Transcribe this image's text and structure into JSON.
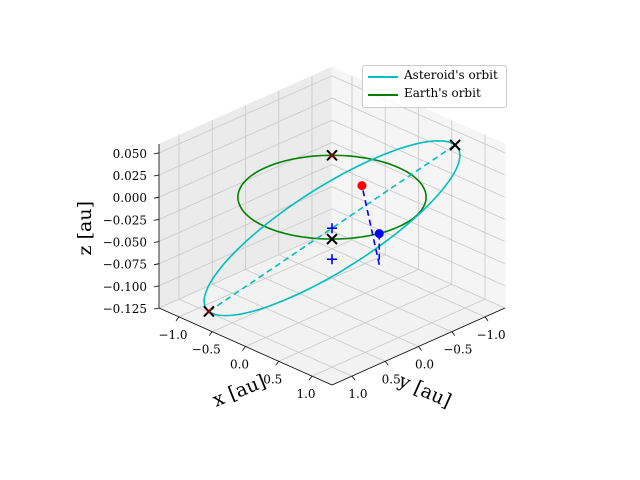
{
  "chart_data": {
    "type": "line",
    "projection": "3d",
    "xlabel": "x [au]",
    "ylabel": "y [au]",
    "zlabel": "z [au]",
    "xlim": [
      -1.3,
      1.3
    ],
    "ylim": [
      -1.3,
      1.3
    ],
    "zlim": [
      -0.125,
      0.06
    ],
    "x_ticks": [
      "−1.0",
      "−0.5",
      "0.0",
      "0.5",
      "1.0"
    ],
    "y_ticks": [
      "−1.0",
      "−0.5",
      "0.0",
      "0.5",
      "1.0"
    ],
    "z_ticks": [
      "−0.125",
      "−0.100",
      "−0.075",
      "−0.050",
      "−0.025",
      "0.000",
      "0.025",
      "0.050"
    ],
    "grid": true,
    "legend_position": "top-right",
    "colors": {
      "asteroid_orbit": "#00bfbf",
      "earth_orbit": "#008000",
      "blue_marker": "#0000ff",
      "red_marker": "#ff0000",
      "x_marker": "#000000",
      "x_marker_inner": "#8b0000"
    },
    "series": [
      {
        "name": "Asteroid's orbit",
        "kind": "ellipse",
        "center": [
          0.0,
          0.0,
          -0.035
        ],
        "axis_u": [
          0.8,
          -1.05,
          0.0855
        ],
        "axis_v": [
          1.02,
          0.5,
          0.0205
        ]
      },
      {
        "name": "Earth's orbit",
        "kind": "circle",
        "center": [
          0.0,
          0.0,
          0.0
        ],
        "radius": 1.0
      }
    ],
    "lines": [
      {
        "style": "dashed",
        "color": "asteroid_orbit",
        "from": [
          -0.8,
          1.05,
          -0.1205
        ],
        "to": [
          0.8,
          -1.05,
          0.0505
        ]
      },
      {
        "style": "dashed",
        "color": "blue_marker",
        "from": [
          0.97,
          0.26,
          0.0
        ],
        "to": [
          0.97,
          0.26,
          -0.035
        ]
      },
      {
        "style": "dashed",
        "color": "blue_marker",
        "from": [
          0.97,
          0.26,
          -0.035
        ],
        "to": [
          -0.45,
          -0.9,
          -0.032
        ]
      }
    ],
    "points": [
      {
        "marker": "circle",
        "color": "blue_marker",
        "xyz": [
          0.97,
          0.26,
          0.0
        ]
      },
      {
        "marker": "circle",
        "color": "red_marker",
        "xyz": [
          -0.45,
          -0.9,
          -0.032
        ]
      },
      {
        "marker": "plus",
        "color": "blue_marker",
        "xyz": [
          0.0,
          0.0,
          -0.035
        ]
      },
      {
        "marker": "plus",
        "color": "blue_marker",
        "xyz": [
          0.0,
          0.0,
          -0.07
        ]
      },
      {
        "marker": "x",
        "color": "x_marker",
        "xyz": [
          0.8,
          -1.05,
          0.0505
        ]
      },
      {
        "marker": "x",
        "color": "x_marker",
        "xyz": [
          0.707,
          0.707,
          0.0
        ]
      },
      {
        "marker": "x",
        "color": "x_marker",
        "xyz": [
          -0.707,
          -0.707,
          0.0
        ],
        "inner": "x_marker_inner"
      },
      {
        "marker": "x",
        "color": "x_marker",
        "xyz": [
          -0.8,
          1.05,
          -0.1205
        ],
        "inner": "x_marker_inner"
      }
    ]
  }
}
